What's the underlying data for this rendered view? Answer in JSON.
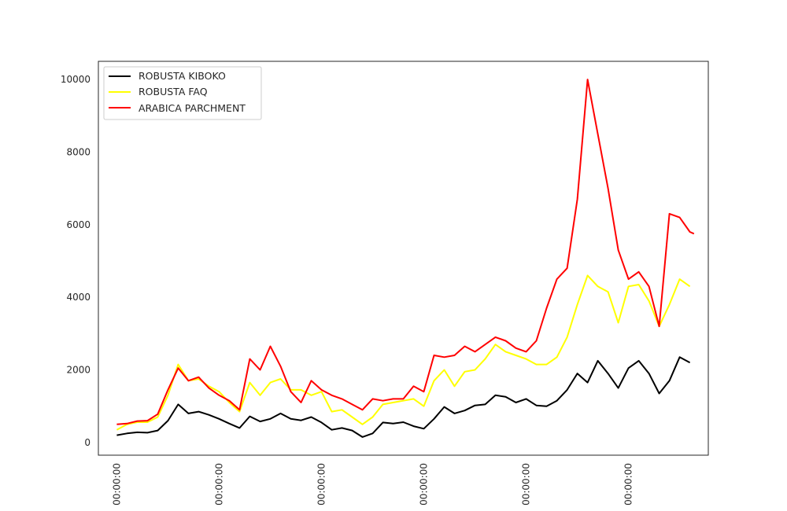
{
  "chart_data": {
    "type": "line",
    "title": "",
    "xlabel": "",
    "ylabel": "",
    "ylim": [
      -350,
      10500
    ],
    "xlim": [
      -9,
      289
    ],
    "grid": false,
    "legend_position": "upper-left",
    "x_tick_positions": [
      0,
      50,
      100,
      150,
      200,
      250
    ],
    "x_tick_labels": [
      "00:00:00",
      "00:00:00",
      "00:00:00",
      "00:00:00",
      "00:00:00",
      "00:00:00"
    ],
    "y_ticks": [
      0,
      2000,
      4000,
      6000,
      8000,
      10000
    ],
    "y_tick_labels": [
      "0",
      "2000",
      "4000",
      "6000",
      "8000",
      "10000"
    ],
    "series": [
      {
        "name": "ROBUSTA KIBOKO",
        "color": "#000000",
        "x": [
          0,
          5,
          10,
          15,
          20,
          25,
          30,
          35,
          40,
          45,
          50,
          55,
          60,
          65,
          70,
          75,
          80,
          85,
          90,
          95,
          100,
          105,
          110,
          115,
          120,
          125,
          130,
          135,
          140,
          145,
          150,
          155,
          160,
          165,
          170,
          175,
          180,
          185,
          190,
          195,
          200,
          205,
          210,
          215,
          220,
          225,
          230,
          235,
          240,
          245,
          250,
          255,
          260,
          265,
          270,
          275,
          280
        ],
        "values": [
          200,
          250,
          280,
          270,
          330,
          600,
          1050,
          800,
          850,
          760,
          650,
          520,
          400,
          720,
          580,
          650,
          800,
          650,
          610,
          700,
          550,
          350,
          400,
          330,
          150,
          250,
          550,
          520,
          560,
          450,
          380,
          650,
          980,
          800,
          880,
          1020,
          1050,
          1300,
          1260,
          1100,
          1200,
          1020,
          1000,
          1150,
          1450,
          1900,
          1650,
          2250,
          1900,
          1500,
          2050,
          2250,
          1900,
          1350,
          1700,
          2350,
          2200
        ]
      },
      {
        "name": "ROBUSTA FAQ",
        "color": "#ffff00",
        "x": [
          0,
          5,
          10,
          15,
          20,
          25,
          30,
          35,
          40,
          45,
          50,
          55,
          60,
          65,
          70,
          75,
          80,
          85,
          90,
          95,
          100,
          105,
          110,
          115,
          120,
          125,
          130,
          135,
          140,
          145,
          150,
          155,
          160,
          165,
          170,
          175,
          180,
          185,
          190,
          195,
          200,
          205,
          210,
          215,
          220,
          225,
          230,
          235,
          240,
          245,
          250,
          255,
          260,
          265,
          270,
          275,
          280
        ],
        "values": [
          350,
          500,
          560,
          560,
          700,
          1300,
          2150,
          1700,
          1750,
          1550,
          1400,
          1100,
          850,
          1650,
          1300,
          1650,
          1750,
          1450,
          1450,
          1300,
          1400,
          850,
          900,
          700,
          500,
          700,
          1050,
          1100,
          1150,
          1200,
          1000,
          1700,
          2000,
          1550,
          1950,
          2000,
          2300,
          2700,
          2500,
          2400,
          2300,
          2150,
          2150,
          2350,
          2900,
          3800,
          4600,
          4300,
          4150,
          3300,
          4300,
          4350,
          3900,
          3200,
          3800,
          4500,
          4300
        ]
      },
      {
        "name": "ARABICA PARCHMENT",
        "color": "#ff0000",
        "x": [
          0,
          5,
          10,
          15,
          20,
          25,
          30,
          35,
          40,
          45,
          50,
          55,
          60,
          65,
          70,
          75,
          80,
          85,
          90,
          95,
          100,
          105,
          110,
          115,
          120,
          125,
          130,
          135,
          140,
          145,
          150,
          155,
          160,
          165,
          170,
          175,
          180,
          185,
          190,
          195,
          200,
          205,
          210,
          215,
          220,
          225,
          230,
          235,
          240,
          245,
          250,
          255,
          260,
          265,
          270,
          275,
          280,
          282
        ],
        "values": [
          500,
          520,
          590,
          600,
          780,
          1450,
          2050,
          1700,
          1800,
          1500,
          1300,
          1150,
          900,
          2300,
          2000,
          2650,
          2100,
          1400,
          1100,
          1700,
          1450,
          1300,
          1200,
          1050,
          900,
          1200,
          1150,
          1200,
          1200,
          1550,
          1400,
          2400,
          2350,
          2400,
          2650,
          2500,
          2700,
          2900,
          2800,
          2600,
          2500,
          2800,
          3700,
          4500,
          4800,
          6700,
          10000,
          8500,
          7000,
          5300,
          4500,
          4700,
          4300,
          3200,
          6300,
          6200,
          5800,
          5750
        ]
      }
    ]
  }
}
